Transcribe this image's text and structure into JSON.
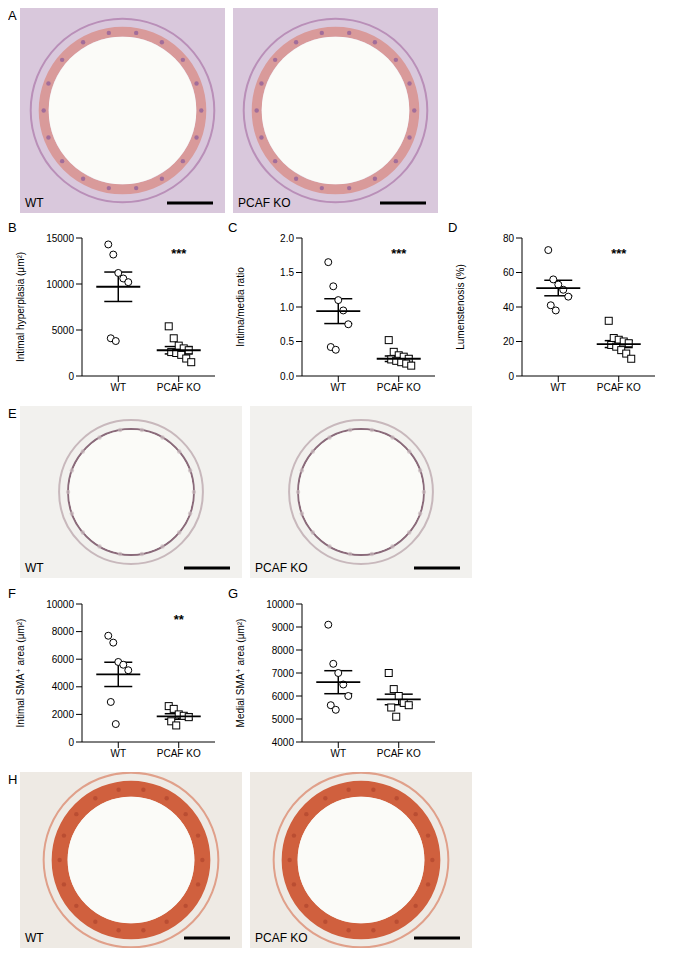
{
  "images": [
    {
      "panel": "A",
      "labels": [
        "WT",
        "PCAF KO"
      ]
    },
    {
      "panel": "E",
      "labels": [
        "WT",
        "PCAF KO"
      ]
    },
    {
      "panel": "H",
      "labels": [
        "WT",
        "PCAF KO"
      ]
    }
  ],
  "chart_data": [
    {
      "type": "scatter",
      "title": "B",
      "y_label": "Intimal hyperplasia (μm²)",
      "categories": [
        "WT",
        "PCAF KO"
      ],
      "values": [
        [
          14300,
          13200,
          11200,
          10600,
          10200,
          4100,
          3800
        ],
        [
          5400,
          4100,
          3300,
          3000,
          2800,
          2600,
          2500,
          2300,
          1900,
          1500
        ]
      ],
      "mean": [
        9700,
        2800
      ],
      "error": [
        1600,
        400
      ],
      "annotation": "***",
      "ylim": [
        0,
        15000
      ],
      "yticks": [
        0,
        5000,
        10000,
        15000
      ]
    },
    {
      "type": "scatter",
      "title": "C",
      "y_label": "Intima/media ratio",
      "categories": [
        "WT",
        "PCAF KO"
      ],
      "values": [
        [
          1.65,
          1.3,
          1.1,
          0.95,
          0.75,
          0.42,
          0.38
        ],
        [
          0.52,
          0.35,
          0.3,
          0.28,
          0.25,
          0.24,
          0.22,
          0.2,
          0.18,
          0.15
        ]
      ],
      "mean": [
        0.94,
        0.25
      ],
      "error": [
        0.18,
        0.04
      ],
      "annotation": "***",
      "ylim": [
        0,
        2
      ],
      "yticks": [
        {
          "value": 0,
          "label": "0.0"
        },
        {
          "value": 0.5,
          "label": "0.5"
        },
        {
          "value": 1,
          "label": "1.0"
        },
        {
          "value": 1.5,
          "label": "1.5"
        },
        {
          "value": 2,
          "label": "2.0"
        }
      ]
    },
    {
      "type": "scatter",
      "title": "D",
      "y_label": "Lumenstenosis (%)",
      "categories": [
        "WT",
        "PCAF KO"
      ],
      "values": [
        [
          73,
          56,
          53,
          50,
          46,
          41,
          38
        ],
        [
          32,
          22,
          21,
          20,
          19,
          18,
          17,
          15,
          13,
          10
        ]
      ],
      "mean": [
        51,
        18.5
      ],
      "error": [
        4.5,
        2
      ],
      "annotation": "***",
      "ylim": [
        0,
        80
      ],
      "yticks": [
        0,
        20,
        40,
        60,
        80
      ]
    },
    {
      "type": "scatter",
      "title": "F",
      "y_label": "Intimal SMA⁺ area (μm²)",
      "categories": [
        "WT",
        "PCAF KO"
      ],
      "values": [
        [
          7700,
          7200,
          5800,
          5600,
          5200,
          2900,
          1300
        ],
        [
          2600,
          2400,
          2000,
          1900,
          1800,
          1500,
          1200
        ]
      ],
      "mean": [
        4900,
        1850
      ],
      "error": [
        880,
        200
      ],
      "annotation": "**",
      "ylim": [
        0,
        10000
      ],
      "yticks": [
        0,
        2000,
        4000,
        6000,
        8000,
        10000
      ]
    },
    {
      "type": "scatter",
      "title": "G",
      "y_label": "Medial SMA⁺ area (μm²)",
      "categories": [
        "WT",
        "PCAF KO"
      ],
      "values": [
        [
          9100,
          7400,
          7000,
          6500,
          6000,
          5600,
          5400
        ],
        [
          7000,
          6300,
          6000,
          5700,
          5600,
          5500,
          5100
        ]
      ],
      "mean": [
        6600,
        5850
      ],
      "error": [
        500,
        230
      ],
      "ylim": [
        4000,
        10000
      ],
      "yticks": [
        4000,
        5000,
        6000,
        7000,
        8000,
        9000,
        10000
      ]
    }
  ]
}
